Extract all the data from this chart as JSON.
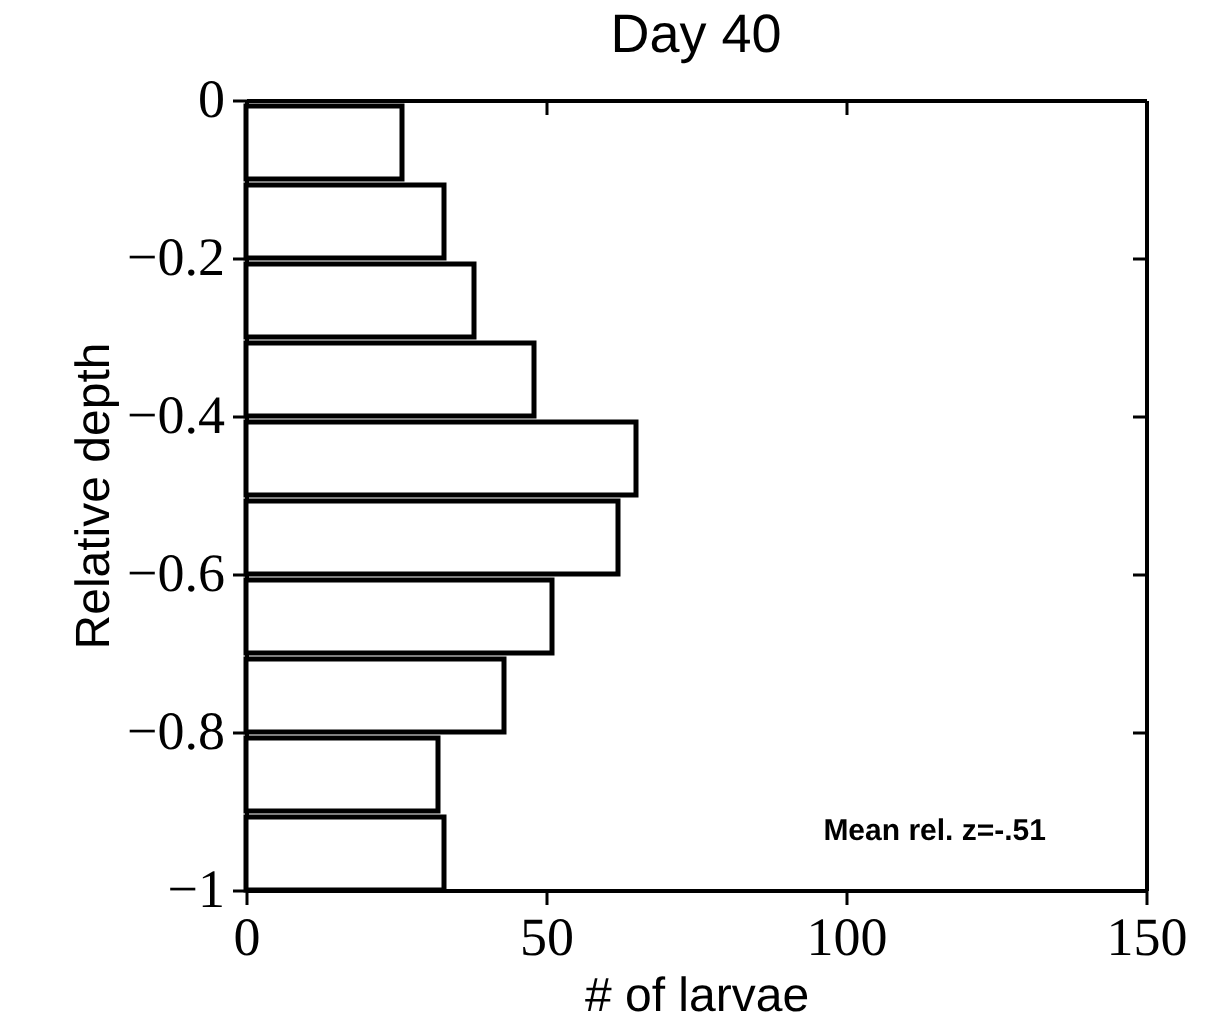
{
  "chart_data": {
    "type": "histogram",
    "orientation": "horizontal",
    "title": "Day 40",
    "xlabel": "# of larvae",
    "ylabel": "Relative depth",
    "bins": [
      0,
      -0.1,
      -0.2,
      -0.3,
      -0.4,
      -0.5,
      -0.6,
      -0.7,
      -0.8,
      -0.9,
      -1
    ],
    "values": [
      26,
      33,
      38,
      48,
      65,
      62,
      51,
      43,
      32,
      33
    ],
    "color": "#ffffff",
    "xlim": [
      0,
      150
    ],
    "xticks": [
      0,
      50,
      100,
      150
    ],
    "ylim": [
      -1,
      0
    ],
    "yticks": [
      {
        "value": 0,
        "label": "0"
      },
      {
        "value": -0.2,
        "label": "−0.2"
      },
      {
        "value": -0.4,
        "label": "−0.4"
      },
      {
        "value": -0.6,
        "label": "−0.6"
      },
      {
        "value": -0.8,
        "label": "−0.8"
      },
      {
        "value": -1,
        "label": "−1"
      }
    ],
    "grid": false,
    "annotations": [
      "Mean rel. z=-.51"
    ]
  }
}
